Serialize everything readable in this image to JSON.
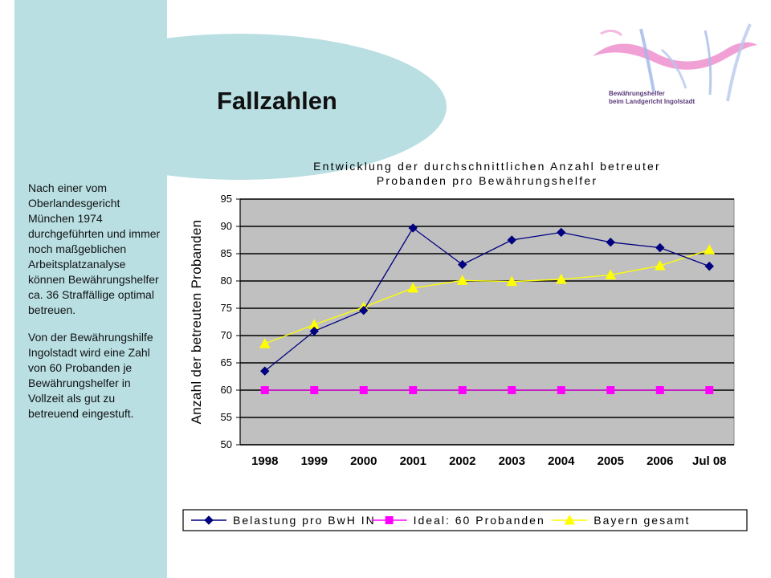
{
  "page_title": "Fallzahlen",
  "side_text": {
    "paragraph1": "Nach einer vom Oberlandesgericht München 1974 durchgeführten und immer noch maßgeblichen Arbeitsplatzanalyse können Bewährungshelfer ca. 36 Straffällige optimal betreuen.",
    "paragraph2": "Von der Bewährungshilfe Ingolstadt wird eine Zahl von 60 Probanden je Bewährungshelfer in Vollzeit als gut zu betreuend eingestuft."
  },
  "logo": {
    "line1": "Bewährungshelfer",
    "line2": "beim Landgericht Ingolstadt"
  },
  "colors": {
    "panel": "#b9dfe3",
    "plot_bg": "#c0c0c0",
    "series1": "#000080",
    "series2": "#ff00ff",
    "series3": "#ffff00"
  },
  "chart_data": {
    "type": "line",
    "title_lines": [
      "Entwicklung der durchschnittlichen Anzahl betreuter",
      "Probanden pro Bewährungshelfer"
    ],
    "xlabel": "",
    "ylabel": "Anzahl der betreuten Probanden",
    "ylim": [
      50,
      95
    ],
    "yticks": [
      50,
      55,
      60,
      65,
      70,
      75,
      80,
      85,
      90,
      95
    ],
    "grid": true,
    "legend_position": "bottom",
    "categories": [
      "1998",
      "1999",
      "2000",
      "2001",
      "2002",
      "2003",
      "2004",
      "2005",
      "2006",
      "Jul 08"
    ],
    "series": [
      {
        "name": "Belastung pro BwH IN",
        "marker": "diamond",
        "color": "#000080",
        "values": [
          63.5,
          70.8,
          74.6,
          89.7,
          83.0,
          87.5,
          88.9,
          87.1,
          86.1,
          82.7
        ]
      },
      {
        "name": "Ideal: 60 Probanden",
        "marker": "square",
        "color": "#ff00ff",
        "values": [
          60,
          60,
          60,
          60,
          60,
          60,
          60,
          60,
          60,
          60
        ]
      },
      {
        "name": "Bayern gesamt",
        "marker": "triangle",
        "color": "#ffff00",
        "values": [
          68.5,
          72.0,
          75.2,
          78.7,
          80.1,
          79.9,
          80.3,
          81.1,
          82.8,
          85.7
        ]
      }
    ]
  }
}
